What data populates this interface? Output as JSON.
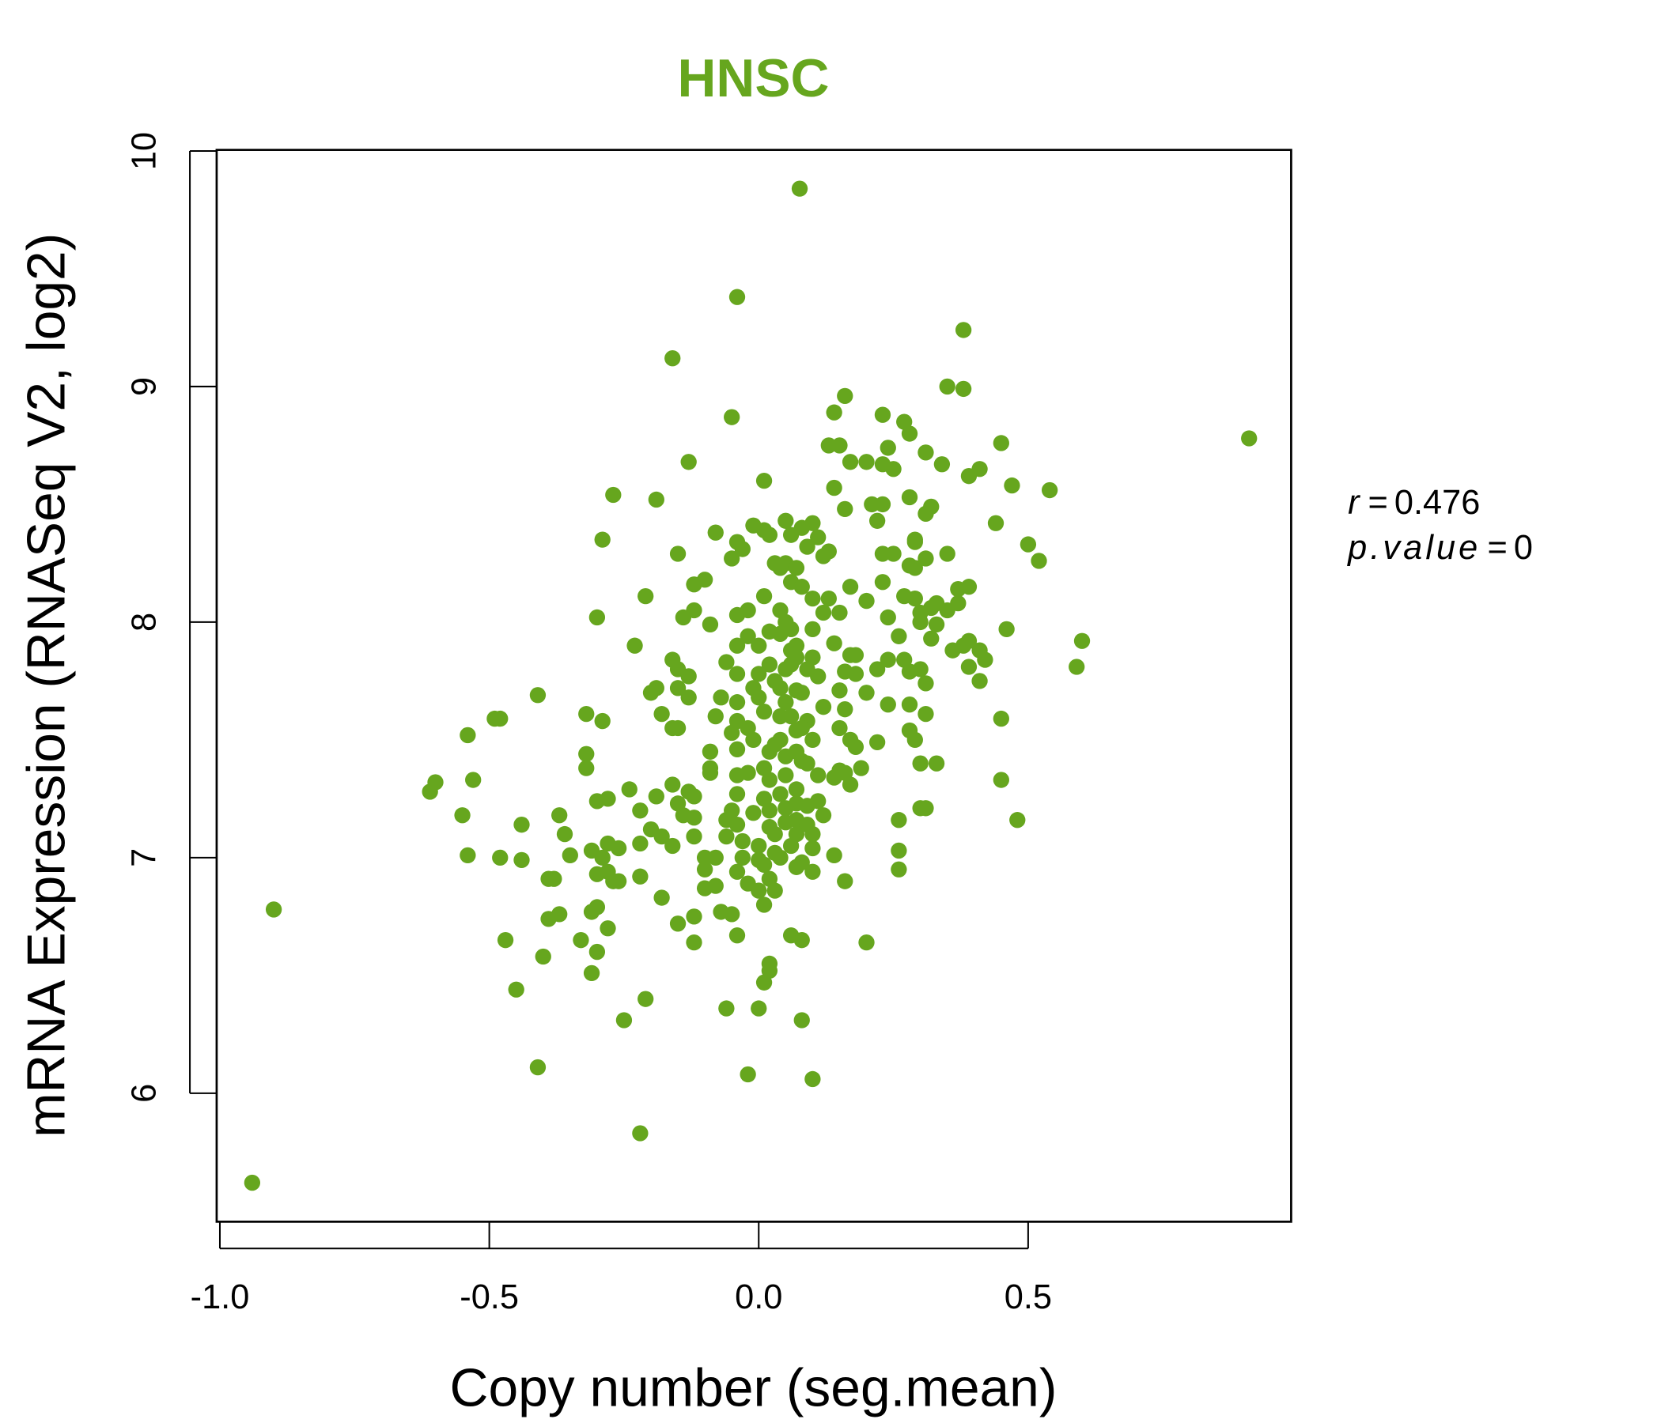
{
  "chart_data": {
    "type": "scatter",
    "title": "HNSC",
    "xlabel": "Copy number (seg.mean)",
    "ylabel": "mRNA Expression (RNASeq V2, log2)",
    "xlim": [
      -1.0,
      0.99
    ],
    "ylim": [
      5.5,
      10.0
    ],
    "xticks": [
      -1.0,
      -0.5,
      0.0,
      0.5
    ],
    "xtick_labels": [
      "-1.0",
      "-0.5",
      "0.0",
      "0.5"
    ],
    "yticks": [
      6,
      7,
      8,
      9,
      10
    ],
    "ytick_labels": [
      "6",
      "7",
      "8",
      "9",
      "10"
    ],
    "grid": false,
    "color": "#66a61e",
    "annotation": {
      "r_label": "r",
      "r_value": "0.476",
      "p_label": "p.value",
      "p_value": "0",
      "eq": "="
    },
    "points": [
      [
        0.076,
        9.84
      ],
      [
        -0.04,
        9.38
      ],
      [
        0.38,
        9.24
      ],
      [
        -0.16,
        9.12
      ],
      [
        0.35,
        9.0
      ],
      [
        0.38,
        8.99
      ],
      [
        0.16,
        8.96
      ],
      [
        -0.05,
        8.87
      ],
      [
        0.14,
        8.89
      ],
      [
        0.23,
        8.88
      ],
      [
        0.27,
        8.85
      ],
      [
        0.28,
        8.8
      ],
      [
        0.91,
        8.78
      ],
      [
        0.45,
        8.76
      ],
      [
        0.13,
        8.75
      ],
      [
        0.15,
        8.75
      ],
      [
        0.24,
        8.74
      ],
      [
        0.31,
        8.72
      ],
      [
        -0.13,
        8.68
      ],
      [
        0.17,
        8.68
      ],
      [
        0.2,
        8.68
      ],
      [
        0.23,
        8.67
      ],
      [
        0.25,
        8.65
      ],
      [
        0.34,
        8.67
      ],
      [
        0.41,
        8.65
      ],
      [
        0.39,
        8.62
      ],
      [
        0.01,
        8.6
      ],
      [
        0.47,
        8.58
      ],
      [
        0.54,
        8.56
      ],
      [
        0.14,
        8.57
      ],
      [
        -0.27,
        8.54
      ],
      [
        -0.19,
        8.52
      ],
      [
        0.28,
        8.53
      ],
      [
        0.21,
        8.5
      ],
      [
        0.23,
        8.5
      ],
      [
        0.32,
        8.49
      ],
      [
        0.31,
        8.46
      ],
      [
        0.16,
        8.48
      ],
      [
        0.22,
        8.43
      ],
      [
        0.44,
        8.42
      ],
      [
        0.05,
        8.43
      ],
      [
        0.1,
        8.42
      ],
      [
        0.08,
        8.4
      ],
      [
        -0.01,
        8.41
      ],
      [
        0.01,
        8.39
      ],
      [
        -0.08,
        8.38
      ],
      [
        -0.29,
        8.35
      ],
      [
        0.02,
        8.37
      ],
      [
        0.06,
        8.37
      ],
      [
        0.29,
        8.35
      ],
      [
        0.29,
        8.34
      ],
      [
        0.11,
        8.36
      ],
      [
        0.5,
        8.33
      ],
      [
        -0.04,
        8.34
      ],
      [
        -0.03,
        8.31
      ],
      [
        0.09,
        8.32
      ],
      [
        0.35,
        8.29
      ],
      [
        -0.15,
        8.29
      ],
      [
        0.13,
        8.3
      ],
      [
        0.12,
        8.28
      ],
      [
        0.23,
        8.29
      ],
      [
        0.25,
        8.29
      ],
      [
        0.31,
        8.27
      ],
      [
        -0.05,
        8.27
      ],
      [
        0.52,
        8.26
      ],
      [
        0.03,
        8.25
      ],
      [
        0.05,
        8.25
      ],
      [
        0.07,
        8.23
      ],
      [
        0.04,
        8.23
      ],
      [
        0.28,
        8.24
      ],
      [
        0.29,
        8.23
      ],
      [
        -0.1,
        8.18
      ],
      [
        -0.12,
        8.16
      ],
      [
        0.06,
        8.17
      ],
      [
        0.08,
        8.15
      ],
      [
        0.23,
        8.17
      ],
      [
        0.17,
        8.15
      ],
      [
        0.39,
        8.15
      ],
      [
        0.37,
        8.14
      ],
      [
        0.01,
        8.11
      ],
      [
        -0.21,
        8.11
      ],
      [
        0.27,
        8.11
      ],
      [
        0.29,
        8.1
      ],
      [
        0.1,
        8.1
      ],
      [
        0.13,
        8.1
      ],
      [
        0.33,
        8.08
      ],
      [
        0.32,
        8.06
      ],
      [
        0.37,
        8.08
      ],
      [
        0.35,
        8.05
      ],
      [
        0.2,
        8.09
      ],
      [
        -0.12,
        8.05
      ],
      [
        -0.14,
        8.02
      ],
      [
        -0.02,
        8.05
      ],
      [
        -0.04,
        8.03
      ],
      [
        0.04,
        8.05
      ],
      [
        0.05,
        8.0
      ],
      [
        0.12,
        8.04
      ],
      [
        0.15,
        8.04
      ],
      [
        -0.3,
        8.02
      ],
      [
        0.24,
        8.02
      ],
      [
        0.3,
        8.04
      ],
      [
        0.3,
        8.0
      ],
      [
        0.33,
        7.99
      ],
      [
        0.46,
        7.97
      ],
      [
        -0.09,
        7.99
      ],
      [
        0.06,
        7.97
      ],
      [
        0.1,
        7.97
      ],
      [
        0.02,
        7.96
      ],
      [
        -0.02,
        7.94
      ],
      [
        0.26,
        7.94
      ],
      [
        0.32,
        7.93
      ],
      [
        -0.23,
        7.9
      ],
      [
        0.6,
        7.92
      ],
      [
        0.39,
        7.92
      ],
      [
        0.38,
        7.9
      ],
      [
        0.14,
        7.91
      ],
      [
        -0.04,
        7.9
      ],
      [
        0,
        7.9
      ],
      [
        0.36,
        7.88
      ],
      [
        0.41,
        7.88
      ],
      [
        0.42,
        7.84
      ],
      [
        0.17,
        7.86
      ],
      [
        0.18,
        7.86
      ],
      [
        0.07,
        7.85
      ],
      [
        0.1,
        7.85
      ],
      [
        -0.16,
        7.84
      ],
      [
        0.24,
        7.84
      ],
      [
        0.27,
        7.84
      ],
      [
        -0.06,
        7.83
      ],
      [
        0.02,
        7.82
      ],
      [
        0.06,
        7.82
      ],
      [
        0.59,
        7.81
      ],
      [
        0.39,
        7.81
      ],
      [
        0.3,
        7.8
      ],
      [
        0.22,
        7.8
      ],
      [
        0.16,
        7.79
      ],
      [
        0.18,
        7.78
      ],
      [
        -0.15,
        7.8
      ],
      [
        -0.13,
        7.77
      ],
      [
        -0.04,
        7.78
      ],
      [
        0,
        7.78
      ],
      [
        0.11,
        7.77
      ],
      [
        0.28,
        7.79
      ],
      [
        0.41,
        7.75
      ],
      [
        0.31,
        7.74
      ],
      [
        -0.19,
        7.72
      ],
      [
        -0.2,
        7.7
      ],
      [
        -0.15,
        7.72
      ],
      [
        0.04,
        7.72
      ],
      [
        0.07,
        7.71
      ],
      [
        0.15,
        7.71
      ],
      [
        0.2,
        7.7
      ],
      [
        -0.41,
        7.69
      ],
      [
        -0.13,
        7.68
      ],
      [
        -0.07,
        7.68
      ],
      [
        -0.04,
        7.66
      ],
      [
        0,
        7.68
      ],
      [
        0.05,
        7.66
      ],
      [
        0.28,
        7.65
      ],
      [
        0.24,
        7.65
      ],
      [
        0.12,
        7.64
      ],
      [
        0.16,
        7.63
      ],
      [
        -0.32,
        7.61
      ],
      [
        -0.18,
        7.61
      ],
      [
        0.31,
        7.61
      ],
      [
        -0.49,
        7.59
      ],
      [
        -0.48,
        7.59
      ],
      [
        0.45,
        7.59
      ],
      [
        -0.29,
        7.58
      ],
      [
        -0.08,
        7.6
      ],
      [
        -0.04,
        7.58
      ],
      [
        0.04,
        7.6
      ],
      [
        0.09,
        7.58
      ],
      [
        -0.15,
        7.55
      ],
      [
        -0.16,
        7.55
      ],
      [
        0.15,
        7.55
      ],
      [
        0.28,
        7.54
      ],
      [
        -0.54,
        7.52
      ],
      [
        -0.05,
        7.53
      ],
      [
        -0.01,
        7.5
      ],
      [
        0.07,
        7.54
      ],
      [
        0.1,
        7.5
      ],
      [
        0.17,
        7.5
      ],
      [
        0.29,
        7.5
      ],
      [
        0.18,
        7.47
      ],
      [
        0.22,
        7.49
      ],
      [
        0.03,
        7.48
      ],
      [
        -0.09,
        7.45
      ],
      [
        -0.04,
        7.46
      ],
      [
        -0.32,
        7.44
      ],
      [
        0.05,
        7.43
      ],
      [
        0.08,
        7.41
      ],
      [
        0.3,
        7.4
      ],
      [
        0.33,
        7.4
      ],
      [
        -0.32,
        7.38
      ],
      [
        -0.09,
        7.38
      ],
      [
        -0.09,
        7.36
      ],
      [
        0.19,
        7.38
      ],
      [
        0.09,
        7.4
      ],
      [
        0.01,
        7.38
      ],
      [
        -0.02,
        7.36
      ],
      [
        0.15,
        7.37
      ],
      [
        0.16,
        7.36
      ],
      [
        -0.53,
        7.33
      ],
      [
        0.45,
        7.33
      ],
      [
        0.14,
        7.34
      ],
      [
        0.11,
        7.35
      ],
      [
        -0.04,
        7.35
      ],
      [
        0.02,
        7.33
      ],
      [
        0.17,
        7.31
      ],
      [
        -0.6,
        7.32
      ],
      [
        -0.61,
        7.28
      ],
      [
        -0.16,
        7.31
      ],
      [
        -0.24,
        7.29
      ],
      [
        0.07,
        7.29
      ],
      [
        0.04,
        7.27
      ],
      [
        -0.13,
        7.28
      ],
      [
        -0.12,
        7.26
      ],
      [
        -0.28,
        7.25
      ],
      [
        -0.3,
        7.24
      ],
      [
        -0.04,
        7.27
      ],
      [
        0.01,
        7.25
      ],
      [
        -0.19,
        7.26
      ],
      [
        -0.15,
        7.23
      ],
      [
        0.11,
        7.24
      ],
      [
        0.07,
        7.23
      ],
      [
        0.31,
        7.21
      ],
      [
        0.3,
        7.21
      ],
      [
        -0.05,
        7.2
      ],
      [
        -0.01,
        7.19
      ],
      [
        0.05,
        7.21
      ],
      [
        0.09,
        7.22
      ],
      [
        -0.22,
        7.2
      ],
      [
        -0.55,
        7.18
      ],
      [
        -0.37,
        7.18
      ],
      [
        -0.14,
        7.18
      ],
      [
        -0.12,
        7.17
      ],
      [
        0.12,
        7.18
      ],
      [
        0.48,
        7.16
      ],
      [
        0.26,
        7.16
      ],
      [
        0.07,
        7.16
      ],
      [
        0.09,
        7.14
      ],
      [
        -0.06,
        7.16
      ],
      [
        -0.04,
        7.14
      ],
      [
        -0.44,
        7.14
      ],
      [
        0.02,
        7.13
      ],
      [
        -0.2,
        7.12
      ],
      [
        -0.18,
        7.09
      ],
      [
        -0.36,
        7.1
      ],
      [
        0.07,
        7.1
      ],
      [
        0.1,
        7.1
      ],
      [
        -0.06,
        7.09
      ],
      [
        -0.03,
        7.07
      ],
      [
        -0.12,
        7.09
      ],
      [
        -0.22,
        7.06
      ],
      [
        -0.28,
        7.06
      ],
      [
        -0.26,
        7.04
      ],
      [
        0,
        7.05
      ],
      [
        0.06,
        7.05
      ],
      [
        0.1,
        7.04
      ],
      [
        0.26,
        7.03
      ],
      [
        -0.16,
        7.05
      ],
      [
        -0.35,
        7.01
      ],
      [
        -0.54,
        7.01
      ],
      [
        -0.48,
        7.0
      ],
      [
        -0.31,
        7.03
      ],
      [
        -0.29,
        7.0
      ],
      [
        -0.1,
        7.0
      ],
      [
        -0.08,
        7.0
      ],
      [
        -0.03,
        7.0
      ],
      [
        0,
        6.99
      ],
      [
        0.04,
        7.0
      ],
      [
        0.08,
        6.98
      ],
      [
        0.14,
        7.01
      ],
      [
        -0.44,
        6.99
      ],
      [
        0.01,
        6.97
      ],
      [
        0.07,
        6.96
      ],
      [
        0.26,
        6.95
      ],
      [
        -0.3,
        6.93
      ],
      [
        -0.28,
        6.94
      ],
      [
        -0.1,
        6.95
      ],
      [
        -0.04,
        6.94
      ],
      [
        0.1,
        6.94
      ],
      [
        -0.38,
        6.91
      ],
      [
        -0.39,
        6.91
      ],
      [
        -0.22,
        6.92
      ],
      [
        -0.27,
        6.9
      ],
      [
        -0.26,
        6.9
      ],
      [
        0.02,
        6.91
      ],
      [
        -0.02,
        6.89
      ],
      [
        0.16,
        6.9
      ],
      [
        -0.1,
        6.87
      ],
      [
        -0.08,
        6.88
      ],
      [
        0.03,
        6.86
      ],
      [
        0,
        6.86
      ],
      [
        0.01,
        6.8
      ],
      [
        -0.18,
        6.83
      ],
      [
        -0.3,
        6.79
      ],
      [
        -0.31,
        6.77
      ],
      [
        -0.9,
        6.78
      ],
      [
        -0.07,
        6.77
      ],
      [
        -0.05,
        6.76
      ],
      [
        -0.37,
        6.76
      ],
      [
        -0.39,
        6.74
      ],
      [
        -0.12,
        6.75
      ],
      [
        -0.28,
        6.7
      ],
      [
        -0.15,
        6.72
      ],
      [
        0.06,
        6.67
      ],
      [
        0.08,
        6.65
      ],
      [
        -0.04,
        6.67
      ],
      [
        -0.47,
        6.65
      ],
      [
        -0.33,
        6.65
      ],
      [
        -0.12,
        6.64
      ],
      [
        0.2,
        6.64
      ],
      [
        -0.3,
        6.6
      ],
      [
        -0.4,
        6.58
      ],
      [
        0.02,
        6.55
      ],
      [
        0.02,
        6.52
      ],
      [
        0.01,
        6.47
      ],
      [
        -0.31,
        6.51
      ],
      [
        -0.45,
        6.44
      ],
      [
        -0.21,
        6.4
      ],
      [
        -0.06,
        6.36
      ],
      [
        0,
        6.36
      ],
      [
        -0.25,
        6.31
      ],
      [
        0.08,
        6.31
      ],
      [
        -0.41,
        6.11
      ],
      [
        -0.02,
        6.08
      ],
      [
        0.1,
        6.06
      ],
      [
        -0.22,
        5.83
      ],
      [
        -0.94,
        5.62
      ],
      [
        0.03,
        7.75
      ],
      [
        0.05,
        7.8
      ],
      [
        0.07,
        7.9
      ],
      [
        0.06,
        7.6
      ],
      [
        0.04,
        7.5
      ],
      [
        0.02,
        7.45
      ],
      [
        0.08,
        7.7
      ],
      [
        0.05,
        7.35
      ],
      [
        0.03,
        7.1
      ],
      [
        0.01,
        7.62
      ],
      [
        0.06,
        7.88
      ],
      [
        0.04,
        7.95
      ],
      [
        -0.01,
        7.72
      ],
      [
        0.08,
        7.55
      ],
      [
        0.02,
        7.2
      ],
      [
        0.05,
        7.15
      ],
      [
        0.07,
        7.45
      ],
      [
        0.03,
        7.02
      ],
      [
        -0.02,
        7.55
      ],
      [
        0.09,
        7.8
      ]
    ]
  }
}
